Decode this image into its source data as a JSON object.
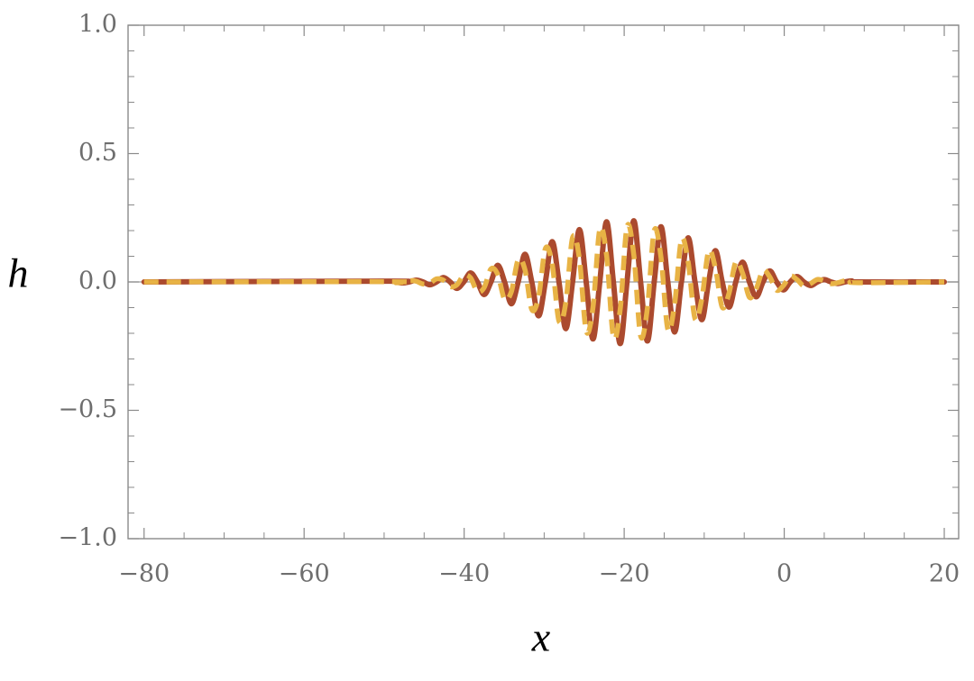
{
  "chart_data": {
    "type": "line",
    "xlabel": "x",
    "ylabel": "h",
    "xlim": [
      -82,
      21.8
    ],
    "ylim": [
      -1,
      1
    ],
    "xticks": [
      {
        "value": -80,
        "label": "−80"
      },
      {
        "value": -60,
        "label": "−60"
      },
      {
        "value": -40,
        "label": "−40"
      },
      {
        "value": -20,
        "label": "−20"
      },
      0,
      20
    ],
    "yticks": [
      {
        "value": -1,
        "label": "−1.0"
      },
      {
        "value": -0.5,
        "label": "−0.5"
      },
      {
        "value": 0,
        "label": "0.0"
      },
      {
        "value": 0.5,
        "label": "0.5"
      },
      {
        "value": 1,
        "label": "1.0"
      }
    ],
    "xminorticks": [
      -75,
      -70,
      -65,
      -55,
      -50,
      -45,
      -35,
      -30,
      -25,
      -15,
      -10,
      -5,
      5,
      10,
      15
    ],
    "yminorticks": [
      -0.9,
      -0.8,
      -0.7,
      -0.6,
      -0.4,
      -0.3,
      -0.2,
      -0.1,
      0.1,
      0.2,
      0.3,
      0.4,
      0.6,
      0.7,
      0.8,
      0.9
    ],
    "x": [
      -80,
      -49.4,
      -48.55,
      -47.7,
      -46.85,
      -46,
      -45.15,
      -44.3,
      -43.45,
      -42.6,
      -41.75,
      -40.9,
      -40.05,
      -39.2,
      -38.35,
      -37.5,
      -36.65,
      -35.8,
      -34.95,
      -34.1,
      -33.25,
      -32.4,
      -31.55,
      -30.7,
      -29.85,
      -29,
      -28.15,
      -27.3,
      -26.45,
      -25.6,
      -24.75,
      -23.9,
      -23.05,
      -22.2,
      -21.35,
      -20.5,
      -19.65,
      -18.8,
      -17.95,
      -17.1,
      -16.25,
      -15.4,
      -14.55,
      -13.7,
      -12.85,
      -12,
      -11.15,
      -10.3,
      -9.45,
      -8.6,
      -7.75,
      -6.9,
      -6.05,
      -5.2,
      -4.35,
      -3.5,
      -2.65,
      -1.8,
      -0.95,
      -0.1,
      0.75,
      1.6,
      2.45,
      3.3,
      4.15,
      5,
      5.85,
      6.7,
      7.55,
      8.4,
      9.25,
      20
    ],
    "series": [
      {
        "color": "#ab4a2e",
        "dashed": false,
        "values": [
          0,
          0.003,
          0,
          -0.004,
          0,
          0.007,
          0,
          -0.011,
          0,
          0.017,
          0,
          -0.025,
          0,
          0.035,
          0,
          -0.049,
          0,
          0.065,
          0,
          -0.085,
          0,
          0.108,
          0,
          -0.132,
          0,
          0.157,
          0,
          -0.182,
          0,
          0.204,
          0,
          -0.222,
          0,
          0.234,
          0,
          -0.24,
          0,
          0.238,
          0,
          -0.23,
          0,
          0.215,
          0,
          -0.195,
          0,
          0.172,
          0,
          -0.147,
          0,
          0.122,
          0,
          -0.098,
          0,
          0.077,
          0,
          -0.058,
          0,
          0.043,
          0,
          -0.031,
          0,
          0.021,
          0,
          -0.014,
          0,
          0.009,
          0,
          -0.006,
          0,
          0.004,
          0,
          0
        ]
      },
      {
        "color": "#e8b345",
        "dashed": true,
        "values": [
          0,
          0.001,
          -0.003,
          -0.002,
          0.005,
          0.003,
          -0.008,
          -0.005,
          0.012,
          0.007,
          -0.018,
          -0.011,
          0.026,
          0.016,
          -0.037,
          -0.022,
          0.051,
          0.029,
          -0.067,
          -0.038,
          0.086,
          0.048,
          -0.107,
          -0.059,
          0.13,
          0.07,
          -0.152,
          -0.081,
          0.173,
          0.091,
          -0.191,
          -0.099,
          0.205,
          0.104,
          -0.213,
          -0.107,
          0.215,
          0.106,
          -0.21,
          -0.102,
          0.2,
          0.096,
          -0.184,
          -0.087,
          0.165,
          0.077,
          -0.143,
          -0.066,
          0.12,
          0.054,
          -0.098,
          -0.044,
          0.078,
          0.034,
          -0.06,
          -0.026,
          0.045,
          0.019,
          -0.032,
          -0.014,
          0.023,
          0.009,
          -0.016,
          -0.006,
          0.01,
          0.004,
          -0.007,
          -0.003,
          0.004,
          0.002,
          -0.003,
          0
        ]
      }
    ]
  }
}
